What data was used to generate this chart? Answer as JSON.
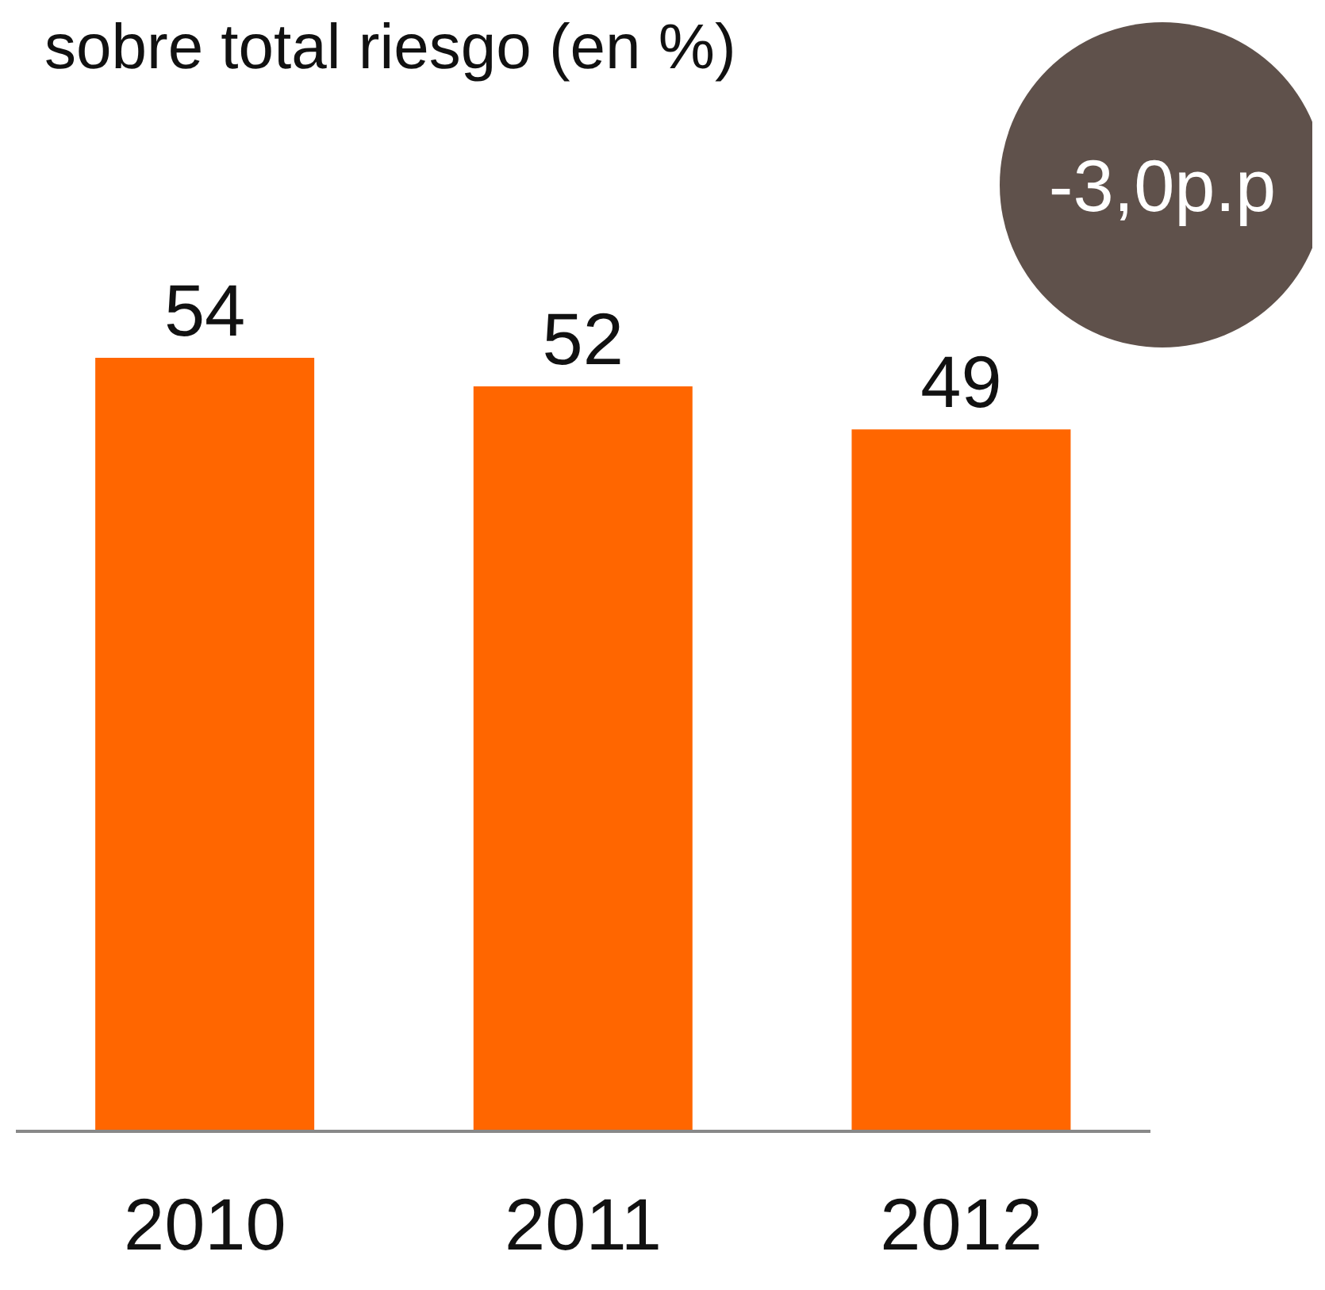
{
  "chart_data": {
    "type": "bar",
    "title": "sobre total riesgo (en %)",
    "categories": [
      "2010",
      "2011",
      "2012"
    ],
    "values": [
      54,
      52,
      49
    ],
    "color": "#ff6600",
    "data_labels": true,
    "annotations": [
      "-3,0p.p"
    ]
  }
}
